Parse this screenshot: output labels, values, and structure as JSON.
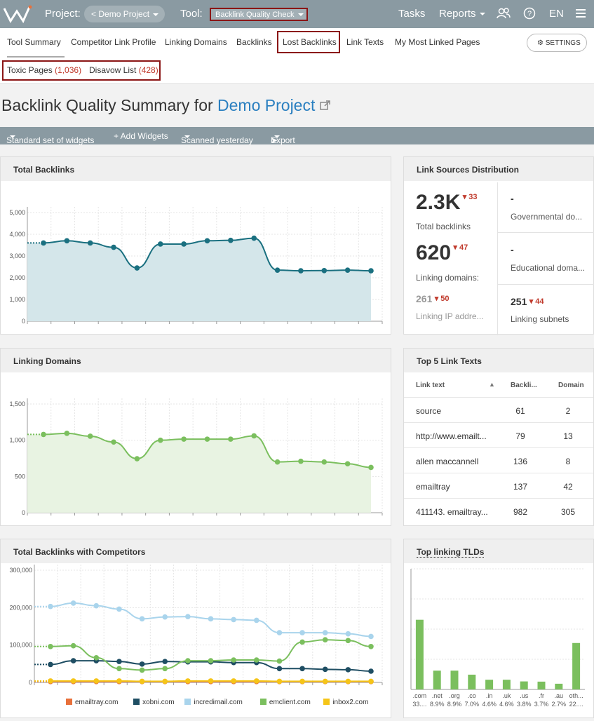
{
  "topbar": {
    "project_label": "Project:",
    "project_value": "Demo Project",
    "tool_label": "Tool:",
    "tool_value": "Backlink Quality Check",
    "tasks": "Tasks",
    "reports": "Reports",
    "lang": "EN"
  },
  "tabs": [
    "Tool Summary",
    "Competitor Link Profile",
    "Linking Domains",
    "Backlinks",
    "Lost Backlinks",
    "Link Texts",
    "My Most Linked Pages"
  ],
  "subtabs": {
    "toxic_label": "Toxic Pages",
    "toxic_count": "(1,036)",
    "disavow_label": "Disavow List",
    "disavow_count": "(428)"
  },
  "settings_label": "SETTINGS",
  "page_title": {
    "prefix": "Backlink Quality Summary for",
    "project": "Demo Project"
  },
  "widget_bar": {
    "set": "Standard set of widgets",
    "add": "+ Add Widgets",
    "scanned": "Scanned yesterday",
    "export": "Export"
  },
  "cards": {
    "total_backlinks": "Total Backlinks",
    "link_sources": "Link Sources Distribution",
    "linking_domains": "Linking Domains",
    "top5": "Top 5 Link Texts",
    "competitors": "Total Backlinks with Competitors",
    "tlds": "Top linking TLDs"
  },
  "link_sources": {
    "total_backlinks": {
      "value": "2.3K",
      "delta": "33",
      "label": "Total backlinks"
    },
    "linking_domains": {
      "value": "620",
      "delta": "47",
      "label": "Linking domains:"
    },
    "linking_ips": {
      "value": "261",
      "delta": "50",
      "label": "Linking IP addre..."
    },
    "governmental": {
      "value": "-",
      "label": "Governmental do..."
    },
    "educational": {
      "value": "-",
      "label": "Educational doma..."
    },
    "subnets": {
      "value": "251",
      "delta": "44",
      "label": "Linking subnets"
    }
  },
  "top5": {
    "headers": [
      "Link text",
      "Backli...",
      "Domain"
    ],
    "rows": [
      [
        "source",
        "61",
        "2"
      ],
      [
        "http://www.emailt...",
        "79",
        "13"
      ],
      [
        "allen maccannell",
        "136",
        "8"
      ],
      [
        "emailtray",
        "137",
        "42"
      ],
      [
        "411143. emailtray...",
        "982",
        "305"
      ]
    ]
  },
  "chart_data": [
    {
      "type": "area",
      "title": "Total Backlinks",
      "y_ticks": [
        "0",
        "1,000",
        "2,000",
        "3,000",
        "4,000",
        "5,000"
      ],
      "ylim": [
        0,
        5000
      ],
      "values": [
        3600,
        3700,
        3600,
        3400,
        2450,
        3550,
        3550,
        3700,
        3720,
        3820,
        2350,
        2320,
        2330,
        2350,
        2320
      ],
      "color": "#1a7080",
      "fill": "#d4e6ea"
    },
    {
      "type": "area",
      "title": "Linking Domains",
      "y_ticks": [
        "0",
        "500",
        "1,000",
        "1,500"
      ],
      "ylim": [
        0,
        1500
      ],
      "values": [
        1080,
        1095,
        1055,
        975,
        745,
        1000,
        1015,
        1015,
        1015,
        1060,
        700,
        710,
        700,
        675,
        625
      ],
      "color": "#7bbf5e",
      "fill": "#e8f3e2"
    },
    {
      "type": "line",
      "title": "Total Backlinks with Competitors",
      "y_ticks": [
        "0",
        "100,000",
        "200,000",
        "300,000"
      ],
      "ylim": [
        0,
        300000
      ],
      "series": [
        {
          "name": "emailtray.com",
          "color": "#e8703a",
          "values": [
            2300,
            2300,
            2300,
            2300,
            2300,
            2300,
            2300,
            2300,
            2300,
            2300,
            2300,
            2300,
            2300,
            2300,
            2300
          ]
        },
        {
          "name": "xobni.com",
          "color": "#1f4e63",
          "values": [
            48000,
            58000,
            58000,
            56000,
            49000,
            56000,
            55000,
            55000,
            53000,
            53000,
            37000,
            37000,
            35000,
            34000,
            30000
          ]
        },
        {
          "name": "incredimail.com",
          "color": "#a9d4ec",
          "values": [
            203000,
            212000,
            205000,
            196000,
            170000,
            175000,
            176000,
            170000,
            168000,
            166000,
            133000,
            133000,
            133000,
            130000,
            123000
          ]
        },
        {
          "name": "emclient.com",
          "color": "#7bbf5e",
          "values": [
            96000,
            98000,
            66000,
            37000,
            33000,
            37000,
            58000,
            58000,
            60000,
            60000,
            57000,
            108000,
            114000,
            112000,
            96000
          ]
        },
        {
          "name": "inbox2.com",
          "color": "#f5c518",
          "values": [
            4000,
            4000,
            4000,
            4000,
            3000,
            3000,
            4000,
            4000,
            4000,
            4000,
            3000,
            3000,
            3000,
            3000,
            3000
          ]
        }
      ]
    },
    {
      "type": "bar",
      "title": "Top linking TLDs",
      "categories": [
        ".com",
        ".net",
        ".org",
        ".co",
        ".in",
        ".uk",
        ".us",
        ".fr",
        ".au",
        "oth..."
      ],
      "labels": [
        "33....",
        "8.9%",
        "8.9%",
        "7.0%",
        "4.6%",
        "4.6%",
        "3.8%",
        "3.7%",
        "2.7%",
        "22...."
      ],
      "values": [
        33,
        8.9,
        8.9,
        7.0,
        4.6,
        4.6,
        3.8,
        3.7,
        2.7,
        22
      ],
      "ylim": [
        0,
        100
      ],
      "color": "#7bbf5e"
    }
  ]
}
